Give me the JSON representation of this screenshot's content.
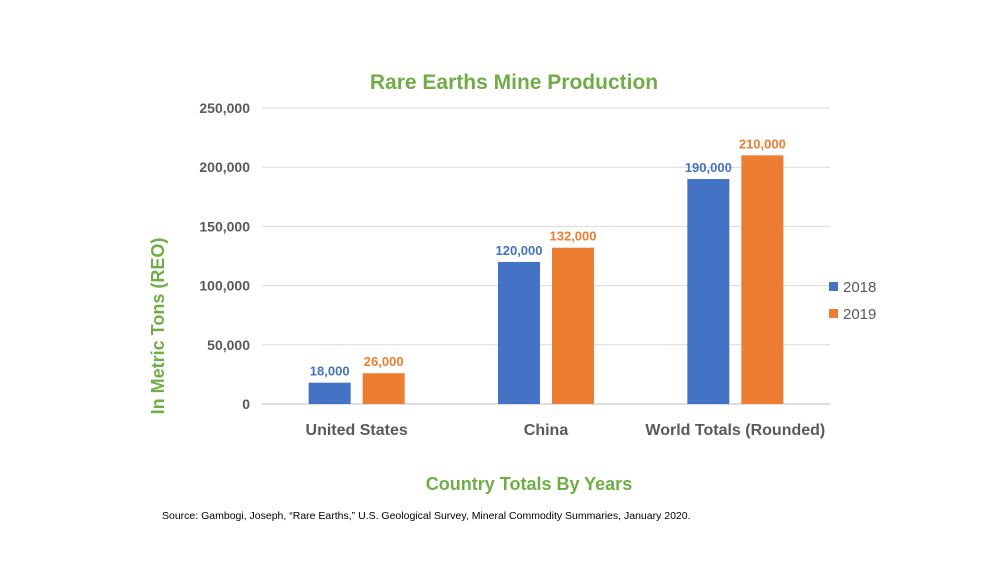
{
  "chart_data": {
    "type": "bar",
    "title": "Rare Earths Mine Production",
    "xlabel": "Country Totals By Years",
    "ylabel": "In Metric Tons (REO)",
    "categories": [
      "United States",
      "China",
      "World Totals (Rounded)"
    ],
    "series": [
      {
        "name": "2018",
        "values": [
          18000,
          120000,
          190000
        ],
        "color": "#4472c4"
      },
      {
        "name": "2019",
        "values": [
          26000,
          132000,
          210000
        ],
        "color": "#ed7d31"
      }
    ],
    "data_labels": [
      [
        "18,000",
        "120,000",
        "190,000"
      ],
      [
        "26,000",
        "132,000",
        "210,000"
      ]
    ],
    "ylim": [
      0,
      250000
    ],
    "yticks": [
      0,
      50000,
      100000,
      150000,
      200000,
      250000
    ],
    "ytick_labels": [
      "0",
      "50,000",
      "100,000",
      "150,000",
      "200,000",
      "250,000"
    ],
    "grid": true,
    "legend_position": "right",
    "source": "Source: Gambogi, Joseph, “Rare Earths,” U.S. Geological Survey, Mineral Commodity  Summaries, January 2020."
  }
}
